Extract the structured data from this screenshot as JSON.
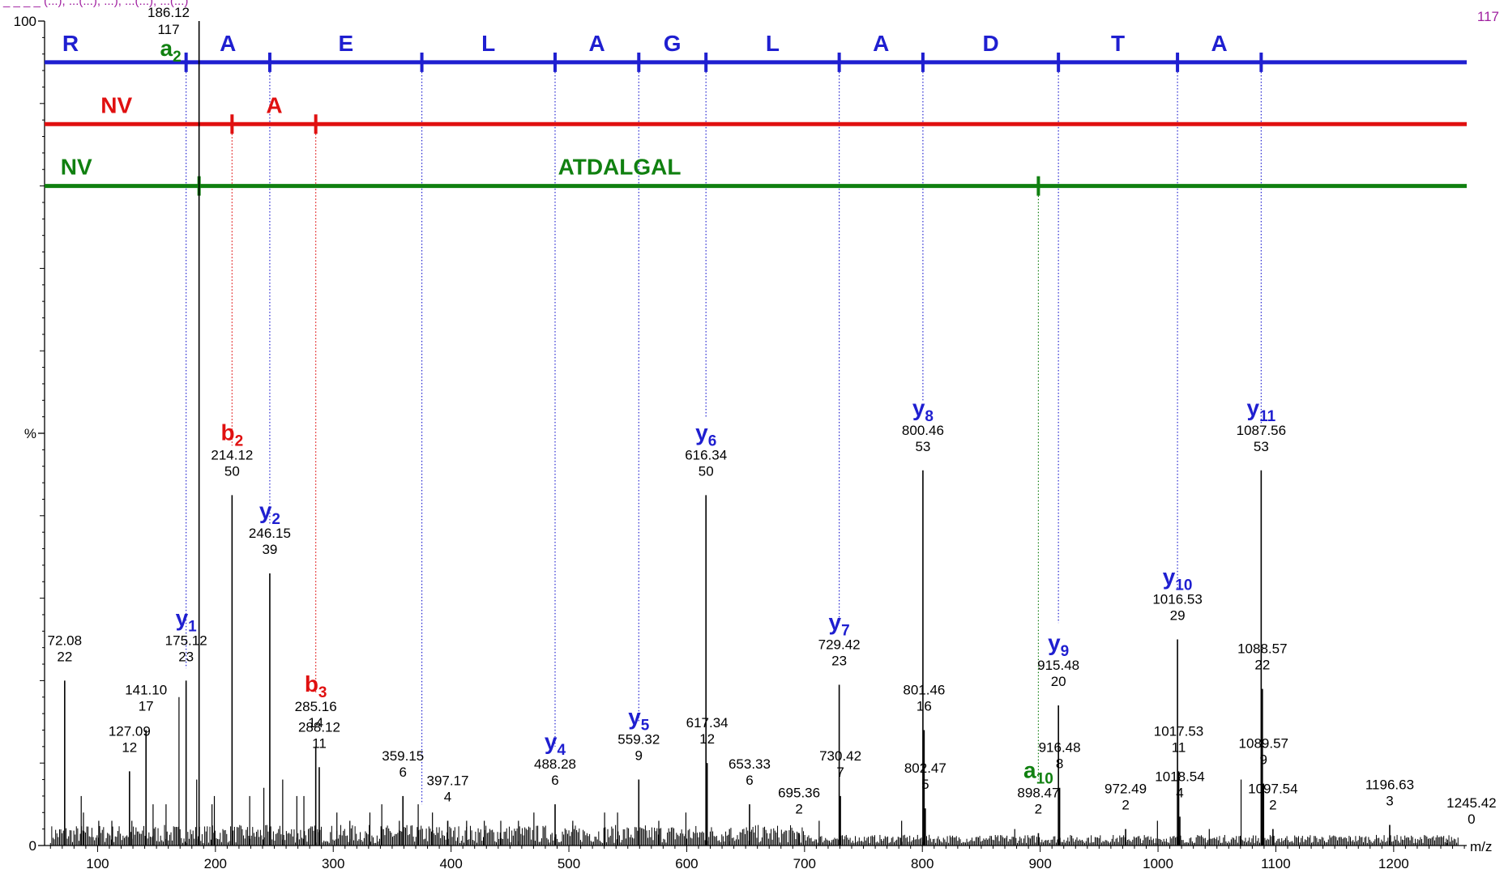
{
  "header": {
    "top_left": "_ _ _ _ (...), ...(...), ...), ...(...), ...(...)",
    "max_intensity": "117",
    "top_peak_mz": "186.12",
    "top_peak_int": "117"
  },
  "chart_data": {
    "type": "bar",
    "xlabel": "m/z",
    "ylabel": "%",
    "xlim": [
      55,
      1262
    ],
    "ylim": [
      0,
      100
    ],
    "x_ticks": [
      100,
      200,
      300,
      400,
      500,
      600,
      700,
      800,
      900,
      1000,
      1100,
      1200
    ],
    "y_ticks": [
      {
        "value": 0,
        "label": "0"
      },
      {
        "value": 50,
        "label": "%"
      },
      {
        "value": 100,
        "label": "100"
      }
    ],
    "colors": {
      "blue": "#1f1fd0",
      "red": "#e01010",
      "green": "#108010",
      "magenta": "#a020a0"
    },
    "labeled_peaks": [
      {
        "mz": 72.08,
        "mz_label": "72.08",
        "int_label": "22",
        "value": 20,
        "ion": "",
        "sub": "",
        "color": "black"
      },
      {
        "mz": 127.09,
        "mz_label": "127.09",
        "int_label": "12",
        "value": 9,
        "ion": "",
        "sub": "",
        "color": "black"
      },
      {
        "mz": 141.1,
        "mz_label": "141.10",
        "int_label": "17",
        "value": 14,
        "ion": "",
        "sub": "",
        "color": "black"
      },
      {
        "mz": 175.12,
        "mz_label": "175.12",
        "int_label": "23",
        "value": 20,
        "ion": "y",
        "sub": "1",
        "color": "blue"
      },
      {
        "mz": 186.12,
        "mz_label": "",
        "int_label": "",
        "value": 100,
        "ion": "",
        "sub": "",
        "color": "black"
      },
      {
        "mz": 214.12,
        "mz_label": "214.12",
        "int_label": "50",
        "value": 42.5,
        "ion": "b",
        "sub": "2",
        "color": "red"
      },
      {
        "mz": 246.15,
        "mz_label": "246.15",
        "int_label": "39",
        "value": 33,
        "ion": "y",
        "sub": "2",
        "color": "blue"
      },
      {
        "mz": 285.16,
        "mz_label": "285.16",
        "int_label": "14",
        "value": 12,
        "ion": "b",
        "sub": "3",
        "color": "red"
      },
      {
        "mz": 288.12,
        "mz_label": "288.12",
        "int_label": "11",
        "value": 9.5,
        "ion": "",
        "sub": "",
        "color": "black"
      },
      {
        "mz": 359.15,
        "mz_label": "359.15",
        "int_label": "6",
        "value": 6,
        "ion": "",
        "sub": "",
        "color": "black"
      },
      {
        "mz": 397.17,
        "mz_label": "397.17",
        "int_label": "4",
        "value": 3,
        "ion": "",
        "sub": "",
        "color": "black"
      },
      {
        "mz": 488.28,
        "mz_label": "488.28",
        "int_label": "6",
        "value": 5,
        "ion": "y",
        "sub": "4",
        "color": "blue"
      },
      {
        "mz": 559.32,
        "mz_label": "559.32",
        "int_label": "9",
        "value": 8,
        "ion": "y",
        "sub": "5",
        "color": "blue"
      },
      {
        "mz": 616.34,
        "mz_label": "616.34",
        "int_label": "50",
        "value": 42.5,
        "ion": "y",
        "sub": "6",
        "color": "blue"
      },
      {
        "mz": 617.34,
        "mz_label": "617.34",
        "int_label": "12",
        "value": 10,
        "ion": "",
        "sub": "",
        "color": "black"
      },
      {
        "mz": 653.33,
        "mz_label": "653.33",
        "int_label": "6",
        "value": 5,
        "ion": "",
        "sub": "",
        "color": "black"
      },
      {
        "mz": 695.36,
        "mz_label": "695.36",
        "int_label": "2",
        "value": 1.5,
        "ion": "",
        "sub": "",
        "color": "black"
      },
      {
        "mz": 729.42,
        "mz_label": "729.42",
        "int_label": "23",
        "value": 19.5,
        "ion": "y",
        "sub": "7",
        "color": "blue"
      },
      {
        "mz": 730.42,
        "mz_label": "730.42",
        "int_label": "7",
        "value": 6,
        "ion": "",
        "sub": "",
        "color": "black"
      },
      {
        "mz": 800.46,
        "mz_label": "800.46",
        "int_label": "53",
        "value": 45.5,
        "ion": "y",
        "sub": "8",
        "color": "blue"
      },
      {
        "mz": 801.46,
        "mz_label": "801.46",
        "int_label": "16",
        "value": 14,
        "ion": "",
        "sub": "",
        "color": "black"
      },
      {
        "mz": 802.47,
        "mz_label": "802.47",
        "int_label": "5",
        "value": 4.5,
        "ion": "",
        "sub": "",
        "color": "black"
      },
      {
        "mz": 898.47,
        "mz_label": "898.47",
        "int_label": "2",
        "value": 1.5,
        "ion": "a",
        "sub": "10",
        "color": "green"
      },
      {
        "mz": 915.48,
        "mz_label": "915.48",
        "int_label": "20",
        "value": 17,
        "ion": "y",
        "sub": "9",
        "color": "blue"
      },
      {
        "mz": 916.48,
        "mz_label": "916.48",
        "int_label": "8",
        "value": 7,
        "ion": "",
        "sub": "",
        "color": "black"
      },
      {
        "mz": 972.49,
        "mz_label": "972.49",
        "int_label": "2",
        "value": 2,
        "ion": "",
        "sub": "",
        "color": "black"
      },
      {
        "mz": 1016.53,
        "mz_label": "1016.53",
        "int_label": "29",
        "value": 25,
        "ion": "y",
        "sub": "10",
        "color": "blue"
      },
      {
        "mz": 1017.53,
        "mz_label": "1017.53",
        "int_label": "11",
        "value": 9,
        "ion": "",
        "sub": "",
        "color": "black"
      },
      {
        "mz": 1018.54,
        "mz_label": "1018.54",
        "int_label": "4",
        "value": 3.5,
        "ion": "",
        "sub": "",
        "color": "black"
      },
      {
        "mz": 1087.56,
        "mz_label": "1087.56",
        "int_label": "53",
        "value": 45.5,
        "ion": "y",
        "sub": "11",
        "color": "blue"
      },
      {
        "mz": 1088.57,
        "mz_label": "1088.57",
        "int_label": "22",
        "value": 19,
        "ion": "",
        "sub": "",
        "color": "black"
      },
      {
        "mz": 1089.57,
        "mz_label": "1089.57",
        "int_label": "9",
        "value": 7.5,
        "ion": "",
        "sub": "",
        "color": "black"
      },
      {
        "mz": 1097.54,
        "mz_label": "1097.54",
        "int_label": "2",
        "value": 2,
        "ion": "",
        "sub": "",
        "color": "black"
      },
      {
        "mz": 1196.63,
        "mz_label": "1196.63",
        "int_label": "3",
        "value": 2.5,
        "ion": "",
        "sub": "",
        "color": "black"
      },
      {
        "mz": 1245.42,
        "mz_label": "1245.42",
        "int_label": "0",
        "value": 0.3,
        "ion": "",
        "sub": "",
        "color": "black"
      }
    ],
    "minor_peaks": [
      {
        "mz": 86.1,
        "value": 6
      },
      {
        "mz": 88.0,
        "value": 4
      },
      {
        "mz": 101.0,
        "value": 3
      },
      {
        "mz": 112.1,
        "value": 3
      },
      {
        "mz": 129.1,
        "value": 3
      },
      {
        "mz": 147.1,
        "value": 5
      },
      {
        "mz": 158.1,
        "value": 5
      },
      {
        "mz": 169.1,
        "value": 18
      },
      {
        "mz": 184.1,
        "value": 8
      },
      {
        "mz": 197.1,
        "value": 5
      },
      {
        "mz": 199.1,
        "value": 6
      },
      {
        "mz": 229.1,
        "value": 6
      },
      {
        "mz": 241.1,
        "value": 7
      },
      {
        "mz": 257.1,
        "value": 8
      },
      {
        "mz": 269.1,
        "value": 6
      },
      {
        "mz": 275.1,
        "value": 6
      },
      {
        "mz": 303.1,
        "value": 4
      },
      {
        "mz": 314.1,
        "value": 3
      },
      {
        "mz": 331.1,
        "value": 4
      },
      {
        "mz": 341.2,
        "value": 5
      },
      {
        "mz": 356.1,
        "value": 3
      },
      {
        "mz": 372.1,
        "value": 5
      },
      {
        "mz": 384.2,
        "value": 4
      },
      {
        "mz": 413.2,
        "value": 3
      },
      {
        "mz": 428.2,
        "value": 3
      },
      {
        "mz": 442.2,
        "value": 3
      },
      {
        "mz": 457.2,
        "value": 3
      },
      {
        "mz": 470.3,
        "value": 4
      },
      {
        "mz": 503.3,
        "value": 3
      },
      {
        "mz": 530.3,
        "value": 4
      },
      {
        "mz": 541.3,
        "value": 4
      },
      {
        "mz": 576.3,
        "value": 3
      },
      {
        "mz": 599.3,
        "value": 4
      },
      {
        "mz": 636.3,
        "value": 2
      },
      {
        "mz": 712.4,
        "value": 3
      },
      {
        "mz": 782.4,
        "value": 3
      },
      {
        "mz": 878.4,
        "value": 2
      },
      {
        "mz": 999.5,
        "value": 3
      },
      {
        "mz": 1043.5,
        "value": 2
      },
      {
        "mz": 1070.5,
        "value": 8
      }
    ],
    "sequence_lines": [
      {
        "color": "blue",
        "value": 95,
        "ticks_mz": [
          175.12,
          246.15,
          375.2,
          488.28,
          559.32,
          616.34,
          729.42,
          800.46,
          915.48,
          1016.53,
          1087.56
        ],
        "residues": [
          {
            "mz": 77,
            "label": "R"
          },
          {
            "mz": 210.6,
            "label": "A"
          },
          {
            "mz": 310.7,
            "label": "E"
          },
          {
            "mz": 431.7,
            "label": "L"
          },
          {
            "mz": 523.8,
            "label": "A"
          },
          {
            "mz": 587.8,
            "label": "G"
          },
          {
            "mz": 672.9,
            "label": "L"
          },
          {
            "mz": 764.9,
            "label": "A"
          },
          {
            "mz": 858,
            "label": "D"
          },
          {
            "mz": 966,
            "label": "T"
          },
          {
            "mz": 1052,
            "label": "A"
          }
        ]
      },
      {
        "color": "red",
        "value": 87.5,
        "ticks_mz": [
          214.12,
          285.16
        ],
        "residues": [
          {
            "mz": 116,
            "label": "NV"
          },
          {
            "mz": 250,
            "label": "A"
          }
        ]
      },
      {
        "color": "green",
        "value": 80,
        "ticks_mz": [
          186.12,
          898.47
        ],
        "residues": [
          {
            "mz": 82,
            "label": "NV"
          },
          {
            "mz": 543,
            "label": "ATDALGAL"
          }
        ]
      }
    ],
    "a2_label": {
      "mz": 162,
      "ion": "a",
      "sub": "2",
      "color": "green"
    },
    "dotted_connectors": [
      {
        "mz": 175.12,
        "from": 95,
        "to": 21.5,
        "color": "blue"
      },
      {
        "mz": 214.12,
        "from": 87.5,
        "to": 48.5,
        "color": "red"
      },
      {
        "mz": 246.15,
        "from": 95,
        "to": 39,
        "color": "blue"
      },
      {
        "mz": 285.16,
        "from": 87.5,
        "to": 18.5,
        "color": "red"
      },
      {
        "mz": 375.2,
        "from": 95,
        "to": 5,
        "color": "blue"
      },
      {
        "mz": 488.28,
        "from": 95,
        "to": 12,
        "color": "blue"
      },
      {
        "mz": 559.32,
        "from": 95,
        "to": 15,
        "color": "blue"
      },
      {
        "mz": 616.34,
        "from": 95,
        "to": 52,
        "color": "blue"
      },
      {
        "mz": 729.42,
        "from": 95,
        "to": 27,
        "color": "blue"
      },
      {
        "mz": 800.46,
        "from": 95,
        "to": 54,
        "color": "blue"
      },
      {
        "mz": 898.47,
        "from": 80,
        "to": 8,
        "color": "green"
      },
      {
        "mz": 915.48,
        "from": 95,
        "to": 27,
        "color": "blue"
      },
      {
        "mz": 1016.53,
        "from": 95,
        "to": 31,
        "color": "blue"
      },
      {
        "mz": 1087.56,
        "from": 95,
        "to": 51,
        "color": "blue"
      }
    ]
  }
}
